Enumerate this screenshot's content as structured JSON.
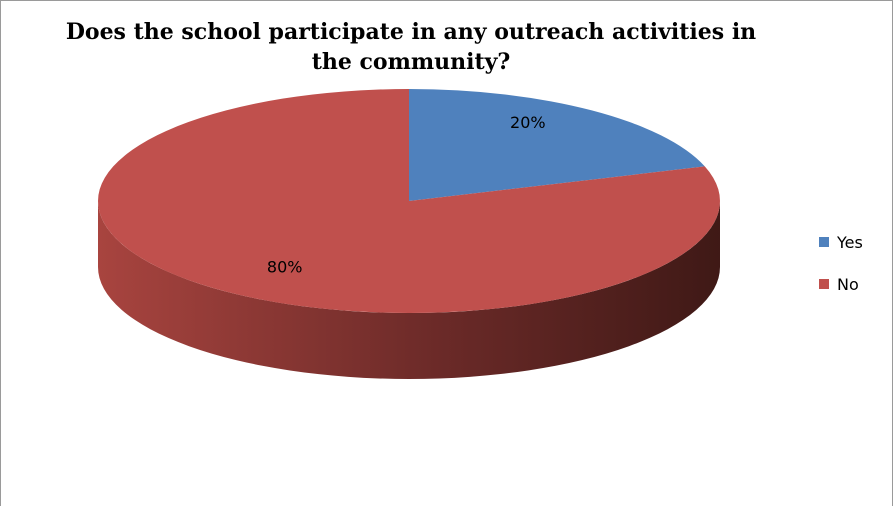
{
  "chart_data": {
    "type": "pie",
    "title": "Does the school participate in any outreach activities in the community?",
    "categories": [
      "Yes",
      "No"
    ],
    "values": [
      20,
      80
    ],
    "data_labels": [
      "20%",
      "80%"
    ],
    "colors": [
      "#4f81bd",
      "#c0504d"
    ],
    "legend_placement": "right",
    "style": "3d"
  },
  "legend": {
    "items": [
      {
        "label": "Yes",
        "color": "#4f81bd"
      },
      {
        "label": "No",
        "color": "#c0504d"
      }
    ]
  }
}
